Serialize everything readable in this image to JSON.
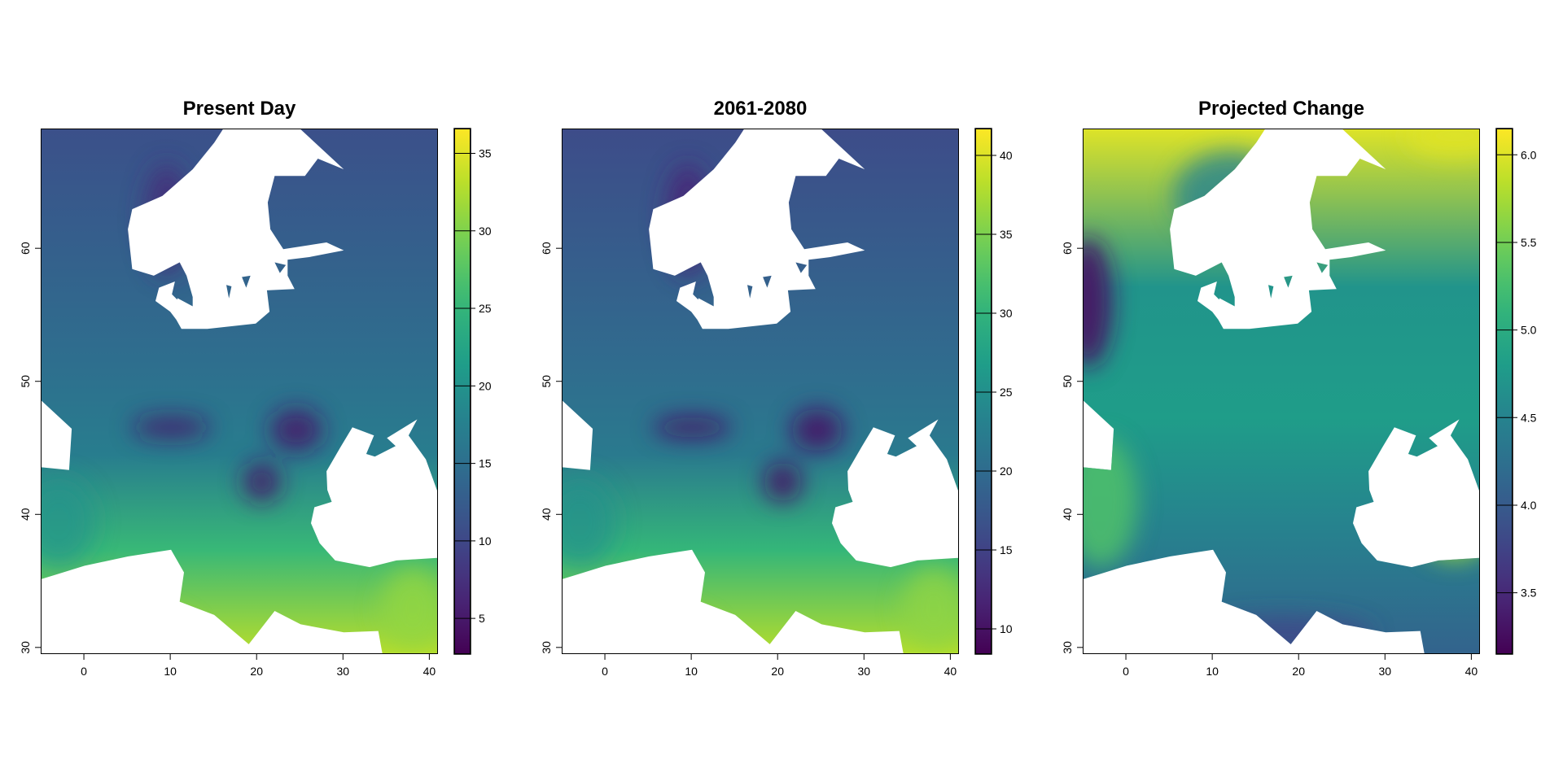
{
  "chart_data": [
    {
      "type": "heatmap",
      "title": "Present Day",
      "xlim": [
        -5,
        41
      ],
      "ylim": [
        29.5,
        69
      ],
      "x_ticks": [
        0,
        10,
        20,
        30,
        40
      ],
      "y_ticks": [
        30,
        40,
        50,
        60
      ],
      "colorbar": {
        "range": [
          2.7,
          36.6
        ],
        "ticks": [
          5,
          10,
          15,
          20,
          25,
          30,
          35
        ]
      },
      "value_pattern": {
        "north": 12,
        "south": 33,
        "alps_low": 5,
        "scandes_low": 7
      }
    },
    {
      "type": "heatmap",
      "title": "2061-2080",
      "xlim": [
        -5,
        41
      ],
      "ylim": [
        29.5,
        69
      ],
      "x_ticks": [
        0,
        10,
        20,
        30,
        40
      ],
      "y_ticks": [
        30,
        40,
        50,
        60
      ],
      "colorbar": {
        "range": [
          8.4,
          41.7
        ],
        "ticks": [
          10,
          15,
          20,
          25,
          30,
          35,
          40
        ]
      },
      "value_pattern": {
        "north": 17,
        "south": 38,
        "alps_low": 10,
        "scandes_low": 12
      }
    },
    {
      "type": "heatmap",
      "title": "Projected Change",
      "xlim": [
        -5,
        41
      ],
      "ylim": [
        29.5,
        69
      ],
      "x_ticks": [
        0,
        10,
        20,
        30,
        40
      ],
      "y_ticks": [
        30,
        40,
        50,
        60
      ],
      "colorbar": {
        "range": [
          3.15,
          6.15
        ],
        "ticks": [
          "3.5",
          "4.0",
          "4.5",
          "5.0",
          "5.5",
          "6.0"
        ]
      },
      "value_pattern": {
        "west_britain": 3.3,
        "iberia": 5.3,
        "interior": 4.8,
        "north_africa": 4.1,
        "anatolia": 5.7,
        "northeast": 6.0
      }
    }
  ],
  "palette": [
    "#440154",
    "#482878",
    "#3e4a89",
    "#31688e",
    "#26828e",
    "#1f9e89",
    "#35b779",
    "#6ece58",
    "#b5de2b",
    "#fde725"
  ]
}
